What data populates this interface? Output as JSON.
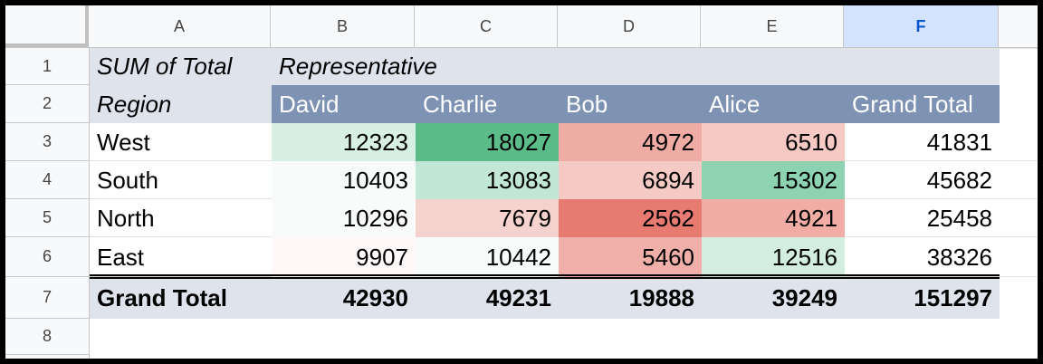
{
  "columns": [
    "A",
    "B",
    "C",
    "D",
    "E",
    "F"
  ],
  "selected_column": "F",
  "rows": [
    "1",
    "2",
    "3",
    "4",
    "5",
    "6",
    "7",
    "8"
  ],
  "pivot": {
    "sum_label": "SUM of Total",
    "column_field": "Representative",
    "row_field": "Region",
    "col_headers": [
      "David",
      "Charlie",
      "Bob",
      "Alice",
      "Grand Total"
    ],
    "row_labels": [
      "West",
      "South",
      "North",
      "East"
    ],
    "values": [
      [
        "12323",
        "18027",
        "4972",
        "6510",
        "41831"
      ],
      [
        "10403",
        "13083",
        "6894",
        "15302",
        "45682"
      ],
      [
        "10296",
        "7679",
        "2562",
        "4921",
        "25458"
      ],
      [
        "9907",
        "10442",
        "5460",
        "12516",
        "38326"
      ]
    ],
    "grand_total_label": "Grand Total",
    "grand_totals": [
      "42930",
      "49231",
      "19888",
      "39249",
      "151297"
    ]
  },
  "colors": {
    "header_band": "#dfe3ec",
    "col_header_fill": "#7e92b3",
    "grand_total_row": "#dfe3ec",
    "selected_col_header": "#d3e3fd",
    "cell_fills": [
      [
        "#d8efe3",
        "#5bbc8a",
        "#eeaca4",
        "#f6c9c4"
      ],
      [
        "#f7fbf9",
        "#c2e7d6",
        "#f5c9c4",
        "#8dd3b1"
      ],
      [
        "#f8fbfa",
        "#f6d2ce",
        "#e77b72",
        "#f0aca5"
      ],
      [
        "#fef9f8",
        "#f7fbf9",
        "#f0b0a9",
        "#d3eee1"
      ]
    ]
  }
}
